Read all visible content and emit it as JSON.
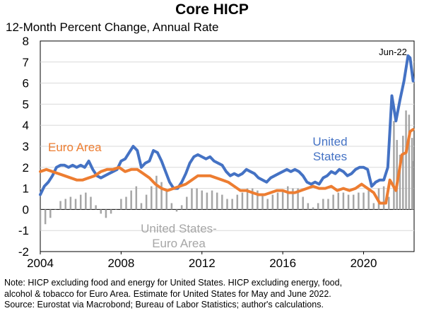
{
  "header": {
    "title": "Core HICP",
    "subtitle": "12-Month Percent Change, Annual Rate"
  },
  "notes": [
    "Note: HICP excluding food and energy for United States. HICP excluding energy, food,",
    "alcohol & tobacco for Euro Area. Estimate for United States for May and June 2022.",
    "Source: Eurostat via Macrobond; Bureau of Labor Statistics; author's calculations."
  ],
  "chart_data": {
    "type": "line",
    "ylim": [
      -2,
      8
    ],
    "xlim": [
      2004.0,
      2022.5
    ],
    "yticks": [
      -2,
      -1,
      0,
      1,
      2,
      3,
      4,
      5,
      6,
      7,
      8
    ],
    "xticks": [
      2004,
      2008,
      2012,
      2016,
      2020
    ],
    "grid": "horizontal",
    "annotations": [
      {
        "text": "Jun-22",
        "x": 2022.45,
        "y": 7.3
      },
      {
        "text": "Euro Area",
        "series": "Euro Area"
      },
      {
        "text": "United States",
        "series": "United States"
      },
      {
        "text": "United States- Euro Area",
        "series": "United States-Euro Area"
      }
    ],
    "colors": {
      "United States": "#4472c4",
      "Euro Area": "#ed7d31",
      "United States-Euro Area": "#a6a6a6"
    },
    "series": [
      {
        "name": "United States",
        "points": [
          [
            2004.0,
            0.7
          ],
          [
            2004.2,
            1.1
          ],
          [
            2004.4,
            1.3
          ],
          [
            2004.6,
            1.6
          ],
          [
            2004.8,
            2.0
          ],
          [
            2005.0,
            2.1
          ],
          [
            2005.2,
            2.1
          ],
          [
            2005.4,
            2.0
          ],
          [
            2005.6,
            2.1
          ],
          [
            2005.8,
            2.0
          ],
          [
            2006.0,
            2.1
          ],
          [
            2006.2,
            2.0
          ],
          [
            2006.4,
            2.3
          ],
          [
            2006.6,
            1.9
          ],
          [
            2006.8,
            1.6
          ],
          [
            2007.0,
            1.5
          ],
          [
            2007.2,
            1.6
          ],
          [
            2007.4,
            1.7
          ],
          [
            2007.6,
            1.8
          ],
          [
            2007.8,
            1.9
          ],
          [
            2008.0,
            2.3
          ],
          [
            2008.2,
            2.4
          ],
          [
            2008.4,
            2.7
          ],
          [
            2008.6,
            3.0
          ],
          [
            2008.8,
            2.8
          ],
          [
            2009.0,
            2.0
          ],
          [
            2009.2,
            2.2
          ],
          [
            2009.4,
            2.3
          ],
          [
            2009.6,
            2.8
          ],
          [
            2009.8,
            2.7
          ],
          [
            2010.0,
            2.3
          ],
          [
            2010.2,
            1.8
          ],
          [
            2010.4,
            1.3
          ],
          [
            2010.6,
            1.0
          ],
          [
            2010.8,
            1.0
          ],
          [
            2011.0,
            1.3
          ],
          [
            2011.2,
            1.7
          ],
          [
            2011.4,
            2.2
          ],
          [
            2011.6,
            2.5
          ],
          [
            2011.8,
            2.6
          ],
          [
            2012.0,
            2.5
          ],
          [
            2012.2,
            2.4
          ],
          [
            2012.4,
            2.5
          ],
          [
            2012.6,
            2.3
          ],
          [
            2012.8,
            2.2
          ],
          [
            2013.0,
            2.1
          ],
          [
            2013.2,
            1.8
          ],
          [
            2013.4,
            1.6
          ],
          [
            2013.6,
            1.7
          ],
          [
            2013.8,
            1.6
          ],
          [
            2014.0,
            1.7
          ],
          [
            2014.2,
            1.9
          ],
          [
            2014.4,
            1.8
          ],
          [
            2014.6,
            1.7
          ],
          [
            2014.8,
            1.5
          ],
          [
            2015.0,
            1.4
          ],
          [
            2015.2,
            1.3
          ],
          [
            2015.4,
            1.5
          ],
          [
            2015.6,
            1.6
          ],
          [
            2015.8,
            1.7
          ],
          [
            2016.0,
            1.8
          ],
          [
            2016.2,
            1.9
          ],
          [
            2016.4,
            1.8
          ],
          [
            2016.6,
            1.9
          ],
          [
            2016.8,
            1.8
          ],
          [
            2017.0,
            1.6
          ],
          [
            2017.2,
            1.3
          ],
          [
            2017.4,
            1.2
          ],
          [
            2017.6,
            1.3
          ],
          [
            2017.8,
            1.2
          ],
          [
            2018.0,
            1.5
          ],
          [
            2018.2,
            1.6
          ],
          [
            2018.4,
            1.8
          ],
          [
            2018.6,
            1.7
          ],
          [
            2018.8,
            1.9
          ],
          [
            2019.0,
            1.8
          ],
          [
            2019.2,
            1.6
          ],
          [
            2019.4,
            1.7
          ],
          [
            2019.6,
            1.9
          ],
          [
            2019.8,
            2.0
          ],
          [
            2020.0,
            2.0
          ],
          [
            2020.2,
            1.9
          ],
          [
            2020.4,
            1.1
          ],
          [
            2020.6,
            1.3
          ],
          [
            2020.8,
            1.4
          ],
          [
            2021.0,
            1.4
          ],
          [
            2021.2,
            2.0
          ],
          [
            2021.4,
            5.4
          ],
          [
            2021.6,
            4.2
          ],
          [
            2021.8,
            5.2
          ],
          [
            2022.0,
            6.1
          ],
          [
            2022.2,
            7.3
          ],
          [
            2022.3,
            7.2
          ],
          [
            2022.45,
            6.1
          ]
        ]
      },
      {
        "name": "Euro Area",
        "points": [
          [
            2004.0,
            1.8
          ],
          [
            2004.3,
            1.9
          ],
          [
            2004.6,
            1.8
          ],
          [
            2004.9,
            1.7
          ],
          [
            2005.2,
            1.6
          ],
          [
            2005.5,
            1.5
          ],
          [
            2005.8,
            1.4
          ],
          [
            2006.1,
            1.4
          ],
          [
            2006.4,
            1.5
          ],
          [
            2006.7,
            1.6
          ],
          [
            2007.0,
            1.8
          ],
          [
            2007.3,
            1.9
          ],
          [
            2007.6,
            1.9
          ],
          [
            2007.9,
            2.0
          ],
          [
            2008.2,
            1.8
          ],
          [
            2008.5,
            1.9
          ],
          [
            2008.8,
            1.9
          ],
          [
            2009.1,
            1.7
          ],
          [
            2009.4,
            1.5
          ],
          [
            2009.7,
            1.2
          ],
          [
            2010.0,
            1.0
          ],
          [
            2010.3,
            0.9
          ],
          [
            2010.6,
            1.0
          ],
          [
            2010.9,
            1.1
          ],
          [
            2011.2,
            1.2
          ],
          [
            2011.5,
            1.4
          ],
          [
            2011.8,
            1.6
          ],
          [
            2012.1,
            1.6
          ],
          [
            2012.4,
            1.6
          ],
          [
            2012.7,
            1.5
          ],
          [
            2013.0,
            1.4
          ],
          [
            2013.3,
            1.3
          ],
          [
            2013.6,
            1.1
          ],
          [
            2013.9,
            0.9
          ],
          [
            2014.2,
            0.9
          ],
          [
            2014.5,
            0.8
          ],
          [
            2014.8,
            0.7
          ],
          [
            2015.1,
            0.7
          ],
          [
            2015.4,
            0.8
          ],
          [
            2015.7,
            0.9
          ],
          [
            2016.0,
            0.9
          ],
          [
            2016.3,
            0.8
          ],
          [
            2016.6,
            0.8
          ],
          [
            2016.9,
            0.9
          ],
          [
            2017.2,
            1.0
          ],
          [
            2017.5,
            1.1
          ],
          [
            2017.8,
            1.0
          ],
          [
            2018.1,
            1.0
          ],
          [
            2018.4,
            1.1
          ],
          [
            2018.7,
            0.9
          ],
          [
            2019.0,
            1.0
          ],
          [
            2019.3,
            0.9
          ],
          [
            2019.6,
            1.0
          ],
          [
            2019.9,
            1.2
          ],
          [
            2020.2,
            1.0
          ],
          [
            2020.5,
            0.8
          ],
          [
            2020.8,
            0.3
          ],
          [
            2021.1,
            0.3
          ],
          [
            2021.3,
            1.4
          ],
          [
            2021.6,
            0.9
          ],
          [
            2021.9,
            2.6
          ],
          [
            2022.1,
            2.7
          ],
          [
            2022.3,
            3.7
          ],
          [
            2022.45,
            3.8
          ]
        ]
      },
      {
        "name": "United States-Euro Area",
        "type": "bar",
        "points": [
          [
            2004.0,
            -1.0
          ],
          [
            2004.25,
            -0.7
          ],
          [
            2004.5,
            -0.4
          ],
          [
            2004.75,
            0.0
          ],
          [
            2005.0,
            0.4
          ],
          [
            2005.25,
            0.5
          ],
          [
            2005.5,
            0.6
          ],
          [
            2005.75,
            0.5
          ],
          [
            2006.0,
            0.7
          ],
          [
            2006.25,
            0.8
          ],
          [
            2006.5,
            0.6
          ],
          [
            2006.75,
            0.2
          ],
          [
            2007.0,
            -0.2
          ],
          [
            2007.25,
            -0.4
          ],
          [
            2007.5,
            -0.2
          ],
          [
            2007.75,
            0.0
          ],
          [
            2008.0,
            0.5
          ],
          [
            2008.25,
            0.6
          ],
          [
            2008.5,
            0.9
          ],
          [
            2008.75,
            1.1
          ],
          [
            2009.0,
            0.3
          ],
          [
            2009.25,
            0.7
          ],
          [
            2009.5,
            1.1
          ],
          [
            2009.75,
            1.6
          ],
          [
            2010.0,
            1.3
          ],
          [
            2010.25,
            0.9
          ],
          [
            2010.5,
            0.3
          ],
          [
            2010.75,
            -0.1
          ],
          [
            2011.0,
            0.2
          ],
          [
            2011.25,
            0.6
          ],
          [
            2011.5,
            1.0
          ],
          [
            2011.75,
            1.0
          ],
          [
            2012.0,
            0.9
          ],
          [
            2012.25,
            0.8
          ],
          [
            2012.5,
            0.9
          ],
          [
            2012.75,
            0.8
          ],
          [
            2013.0,
            0.7
          ],
          [
            2013.25,
            0.5
          ],
          [
            2013.5,
            0.5
          ],
          [
            2013.75,
            0.7
          ],
          [
            2014.0,
            0.8
          ],
          [
            2014.25,
            1.0
          ],
          [
            2014.5,
            1.0
          ],
          [
            2014.75,
            0.9
          ],
          [
            2015.0,
            0.7
          ],
          [
            2015.25,
            0.5
          ],
          [
            2015.5,
            0.7
          ],
          [
            2015.75,
            0.8
          ],
          [
            2016.0,
            0.9
          ],
          [
            2016.25,
            1.1
          ],
          [
            2016.5,
            1.0
          ],
          [
            2016.75,
            1.0
          ],
          [
            2017.0,
            0.6
          ],
          [
            2017.25,
            0.3
          ],
          [
            2017.5,
            0.1
          ],
          [
            2017.75,
            0.3
          ],
          [
            2018.0,
            0.5
          ],
          [
            2018.25,
            0.5
          ],
          [
            2018.5,
            0.7
          ],
          [
            2018.75,
            0.8
          ],
          [
            2019.0,
            0.8
          ],
          [
            2019.25,
            0.7
          ],
          [
            2019.5,
            0.7
          ],
          [
            2019.75,
            0.8
          ],
          [
            2020.0,
            0.8
          ],
          [
            2020.25,
            0.9
          ],
          [
            2020.5,
            0.3
          ],
          [
            2020.75,
            1.0
          ],
          [
            2021.0,
            1.1
          ],
          [
            2021.25,
            0.6
          ],
          [
            2021.5,
            4.2
          ],
          [
            2021.65,
            3.3
          ],
          [
            2021.8,
            2.6
          ],
          [
            2021.95,
            3.5
          ],
          [
            2022.1,
            4.7
          ],
          [
            2022.25,
            4.5
          ],
          [
            2022.4,
            3.4
          ],
          [
            2022.45,
            2.3
          ]
        ]
      }
    ]
  }
}
